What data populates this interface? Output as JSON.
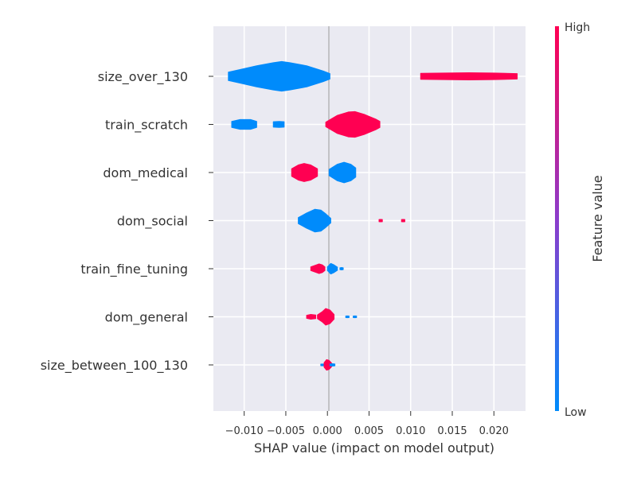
{
  "chart_data": {
    "type": "violin",
    "xlabel": "SHAP value (impact on model output)",
    "xlim": [
      -0.0137,
      0.0238
    ],
    "xticks": [
      -0.01,
      -0.005,
      0.0,
      0.005,
      0.01,
      0.015,
      0.02
    ],
    "xtick_labels": [
      "−0.010",
      "−0.005",
      "0.000",
      "0.005",
      "0.010",
      "0.015",
      "0.020"
    ],
    "grid": true,
    "colorbar": {
      "label": "Feature value",
      "high_label": "High",
      "low_label": "Low",
      "high_color": "#ff0052",
      "low_color": "#008bfb",
      "mid_color": "#8c3ccb"
    },
    "features": [
      {
        "name": "size_over_130",
        "segments": [
          {
            "color": "#008bfb",
            "points": [
              [
                -0.0119,
                0.28
              ],
              [
                -0.0105,
                0.45
              ],
              [
                -0.0085,
                0.7
              ],
              [
                -0.0065,
                0.9
              ],
              [
                -0.0055,
                0.98
              ],
              [
                -0.0045,
                0.9
              ],
              [
                -0.0025,
                0.7
              ],
              [
                -0.0005,
                0.35
              ],
              [
                0.0003,
                0.18
              ]
            ]
          },
          {
            "color": "#ff0052",
            "points": [
              [
                0.0112,
                0.2
              ],
              [
                0.014,
                0.22
              ],
              [
                0.017,
                0.24
              ],
              [
                0.02,
                0.22
              ],
              [
                0.0228,
                0.18
              ]
            ]
          }
        ]
      },
      {
        "name": "train_scratch",
        "segments": [
          {
            "color": "#008bfb",
            "points": [
              [
                -0.0115,
                0.2
              ],
              [
                -0.0105,
                0.32
              ],
              [
                -0.0092,
                0.32
              ],
              [
                -0.0085,
                0.2
              ]
            ]
          },
          {
            "color": "#008bfb",
            "points": [
              [
                -0.0065,
                0.18
              ],
              [
                -0.0058,
                0.2
              ],
              [
                -0.0052,
                0.18
              ]
            ]
          },
          {
            "color": "#ff0052",
            "points": [
              [
                -0.0002,
                0.15
              ],
              [
                0.0012,
                0.6
              ],
              [
                0.0025,
                0.82
              ],
              [
                0.0033,
                0.85
              ],
              [
                0.0045,
                0.65
              ],
              [
                0.0058,
                0.35
              ],
              [
                0.0063,
                0.2
              ]
            ]
          }
        ]
      },
      {
        "name": "dom_medical",
        "segments": [
          {
            "color": "#ff0052",
            "points": [
              [
                -0.0043,
                0.25
              ],
              [
                -0.0035,
                0.5
              ],
              [
                -0.0028,
                0.6
              ],
              [
                -0.002,
                0.5
              ],
              [
                -0.0012,
                0.25
              ]
            ]
          },
          {
            "color": "#008bfb",
            "points": [
              [
                0.0002,
                0.2
              ],
              [
                0.0012,
                0.55
              ],
              [
                0.002,
                0.68
              ],
              [
                0.0028,
                0.55
              ],
              [
                0.0034,
                0.3
              ]
            ]
          }
        ]
      },
      {
        "name": "dom_social",
        "segments": [
          {
            "color": "#008bfb",
            "points": [
              [
                -0.0035,
                0.2
              ],
              [
                -0.0025,
                0.5
              ],
              [
                -0.0015,
                0.75
              ],
              [
                -0.0008,
                0.7
              ],
              [
                -0.0002,
                0.45
              ],
              [
                0.0004,
                0.15
              ]
            ]
          },
          {
            "color": "#ff0052",
            "points": [
              [
                0.0062,
                0.07
              ],
              [
                0.0064,
                0.08
              ],
              [
                0.0066,
                0.07
              ]
            ]
          },
          {
            "color": "#ff0052",
            "points": [
              [
                0.0089,
                0.07
              ],
              [
                0.0091,
                0.08
              ],
              [
                0.0093,
                0.07
              ]
            ]
          }
        ]
      },
      {
        "name": "train_fine_tuning",
        "segments": [
          {
            "color": "#ff0052",
            "points": [
              [
                -0.002,
                0.12
              ],
              [
                -0.0015,
                0.22
              ],
              [
                -0.001,
                0.32
              ],
              [
                -0.0006,
                0.25
              ],
              [
                -0.0003,
                0.12
              ]
            ]
          },
          {
            "color": "#008bfb",
            "points": [
              [
                0.0,
                0.12
              ],
              [
                0.0004,
                0.35
              ],
              [
                0.0008,
                0.25
              ],
              [
                0.0012,
                0.1
              ]
            ]
          },
          {
            "color": "#008bfb",
            "points": [
              [
                0.0015,
                0.06
              ],
              [
                0.0017,
                0.08
              ],
              [
                0.0019,
                0.06
              ]
            ]
          }
        ]
      },
      {
        "name": "dom_general",
        "segments": [
          {
            "color": "#ff0052",
            "points": [
              [
                -0.0025,
                0.1
              ],
              [
                -0.002,
                0.16
              ],
              [
                -0.0014,
                0.12
              ]
            ]
          },
          {
            "color": "#ff0052",
            "points": [
              [
                -0.0012,
                0.12
              ],
              [
                -0.0006,
                0.35
              ],
              [
                -0.0002,
                0.55
              ],
              [
                0.0003,
                0.45
              ],
              [
                0.0008,
                0.15
              ]
            ]
          },
          {
            "color": "#008bfb",
            "points": [
              [
                0.0022,
                0.05
              ],
              [
                0.0024,
                0.06
              ],
              [
                0.0026,
                0.05
              ]
            ]
          },
          {
            "color": "#008bfb",
            "points": [
              [
                0.0031,
                0.05
              ],
              [
                0.0033,
                0.06
              ],
              [
                0.0035,
                0.05
              ]
            ]
          }
        ]
      },
      {
        "name": "size_between_100_130",
        "segments": [
          {
            "color": "#008bfb",
            "points": [
              [
                -0.0008,
                0.05
              ],
              [
                -0.0006,
                0.06
              ],
              [
                -0.0004,
                0.05
              ]
            ]
          },
          {
            "color": "#ff0052",
            "points": [
              [
                -0.0004,
                0.15
              ],
              [
                -0.0001,
                0.35
              ],
              [
                0.0002,
                0.3
              ],
              [
                0.0005,
                0.12
              ]
            ]
          },
          {
            "color": "#008bfb",
            "points": [
              [
                0.0003,
                0.06
              ],
              [
                0.0006,
                0.08
              ],
              [
                0.0009,
                0.06
              ]
            ]
          }
        ]
      }
    ]
  }
}
